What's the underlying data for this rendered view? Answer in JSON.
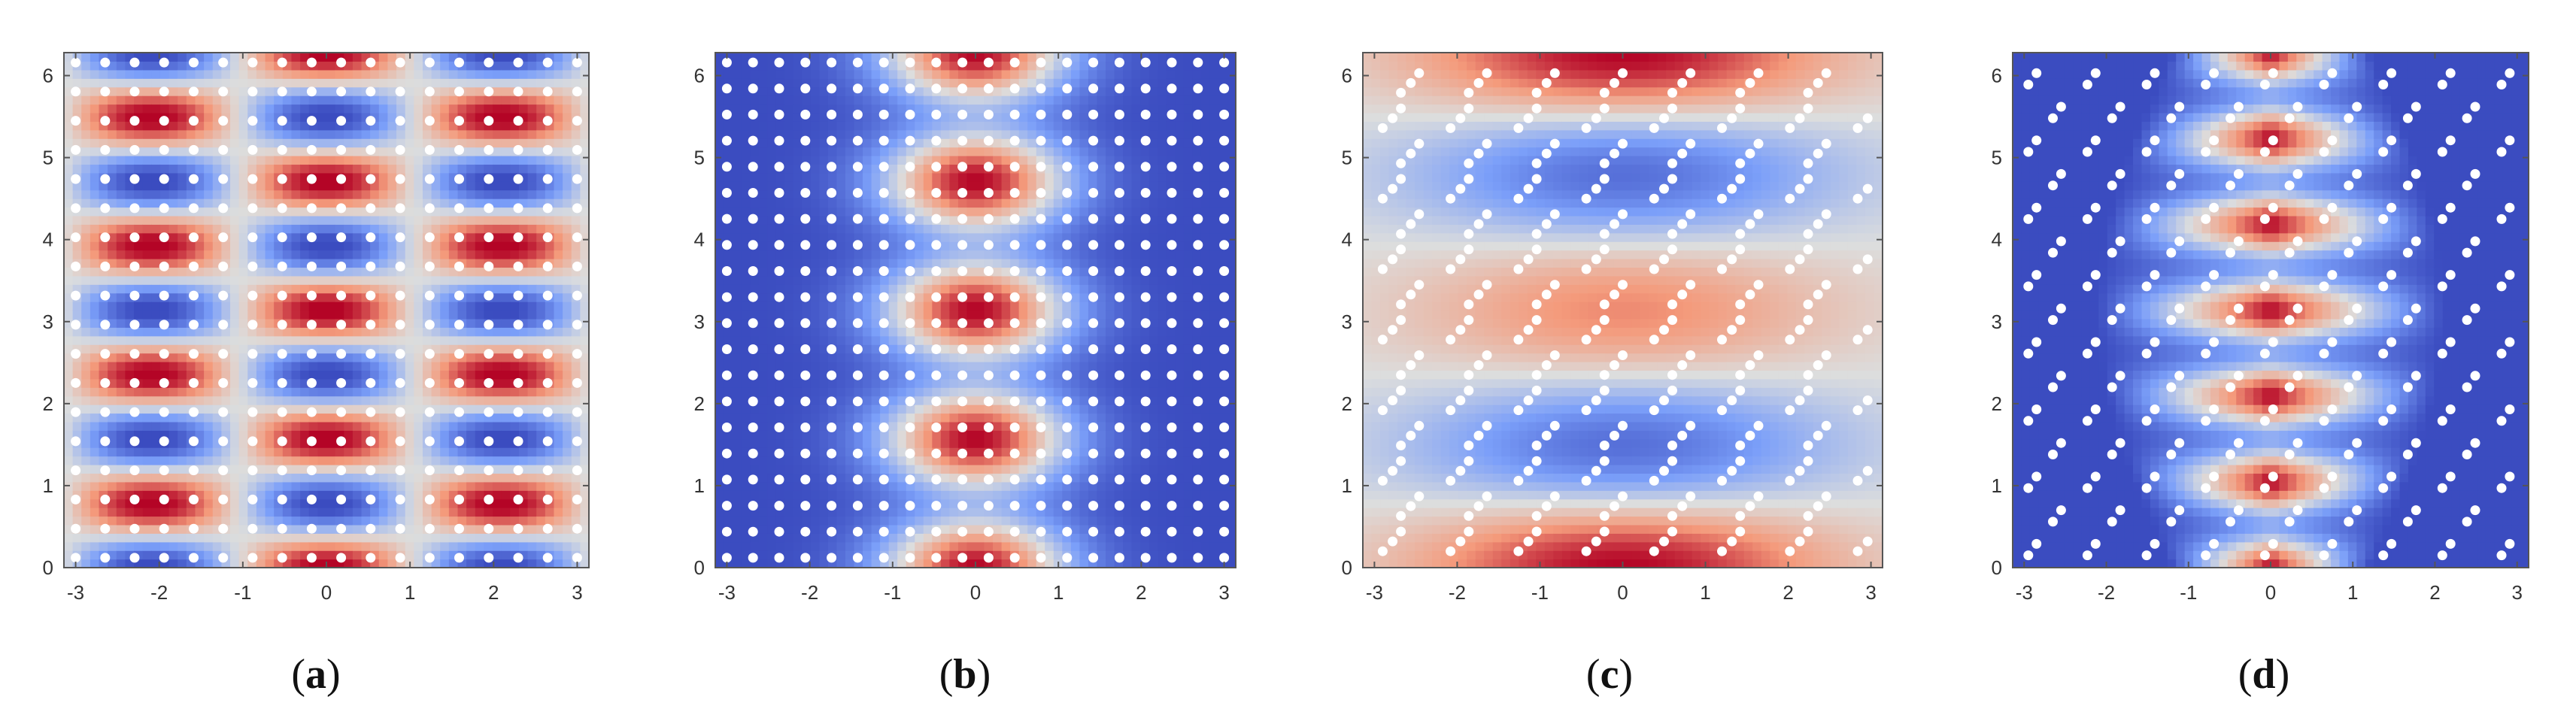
{
  "figure": {
    "colors": {
      "colormap": [
        "#3b4cc0",
        "#7b9ff9",
        "#dcdddd",
        "#f49a7b",
        "#b40426"
      ],
      "points": "#ffffff",
      "frame": "#555555",
      "text": "#333333"
    }
  },
  "chart_data": [
    {
      "type": "heatmap",
      "panel": "a",
      "caption": {
        "open": "(",
        "letter": "a",
        "close": ")"
      },
      "title": "",
      "xlabel": "",
      "ylabel": "",
      "xlim": [
        -3.14,
        3.14
      ],
      "ylim": [
        0,
        6.28
      ],
      "xticks": [
        -3,
        -2,
        -1,
        0,
        1,
        2,
        3
      ],
      "yticks": [
        0,
        1,
        2,
        3,
        4,
        5,
        6
      ],
      "xtick_labels": [
        "-3",
        "-2",
        "-1",
        "0",
        "1",
        "2",
        "3"
      ],
      "ytick_labels": [
        "0",
        "1",
        "2",
        "3",
        "4",
        "5",
        "6"
      ],
      "color_range": [
        -1,
        1
      ],
      "field": "cos(1.5x)*cos(4y)",
      "points": "uniform grid 18x18",
      "legend": "none"
    },
    {
      "type": "heatmap",
      "panel": "b",
      "caption": {
        "open": "(",
        "letter": "b",
        "close": ")"
      },
      "title": "",
      "xlabel": "",
      "ylabel": "",
      "xlim": [
        -3.14,
        3.14
      ],
      "ylim": [
        0,
        6.28
      ],
      "xticks": [
        -3,
        -2,
        -1,
        0,
        1,
        2,
        3
      ],
      "yticks": [
        0,
        1,
        2,
        3,
        4,
        5,
        6
      ],
      "xtick_labels": [
        "-3",
        "-2",
        "-1",
        "0",
        "1",
        "2",
        "3"
      ],
      "ytick_labels": [
        "0",
        "1",
        "2",
        "3",
        "4",
        "5",
        "6"
      ],
      "color_range": [
        -1,
        1
      ],
      "field": "exp(-x^2)*(0.5+0.5cos(4y)) rescaled",
      "points": "uniform grid 20x20",
      "legend": "none"
    },
    {
      "type": "heatmap",
      "panel": "c",
      "caption": {
        "open": "(",
        "letter": "c",
        "close": ")"
      },
      "title": "",
      "xlabel": "",
      "ylabel": "",
      "xlim": [
        -3.14,
        3.14
      ],
      "ylim": [
        0,
        6.28
      ],
      "xticks": [
        -3,
        -2,
        -1,
        0,
        1,
        2,
        3
      ],
      "yticks": [
        0,
        1,
        2,
        3,
        4,
        5,
        6
      ],
      "xtick_labels": [
        "-3",
        "-2",
        "-1",
        "0",
        "1",
        "2",
        "3"
      ],
      "ytick_labels": [
        "0",
        "1",
        "2",
        "3",
        "4",
        "5",
        "6"
      ],
      "color_range": [
        -1,
        1
      ],
      "field": "cos(2y)*envelope(x)",
      "points": "staggered triplets",
      "legend": "none"
    },
    {
      "type": "heatmap",
      "panel": "d",
      "caption": {
        "open": "(",
        "letter": "d",
        "close": ")"
      },
      "title": "",
      "xlabel": "",
      "ylabel": "",
      "xlim": [
        -3.14,
        3.14
      ],
      "ylim": [
        0,
        6.28
      ],
      "xticks": [
        -3,
        -2,
        -1,
        0,
        1,
        2,
        3
      ],
      "yticks": [
        0,
        1,
        2,
        3,
        4,
        5,
        6
      ],
      "xtick_labels": [
        "-3",
        "-2",
        "-1",
        "0",
        "1",
        "2",
        "3"
      ],
      "ytick_labels": [
        "0",
        "1",
        "2",
        "3",
        "4",
        "5",
        "6"
      ],
      "color_range": [
        -1,
        1
      ],
      "field": "diamond envelope * cos(6y) bands",
      "points": "staggered pairs",
      "legend": "none"
    }
  ]
}
